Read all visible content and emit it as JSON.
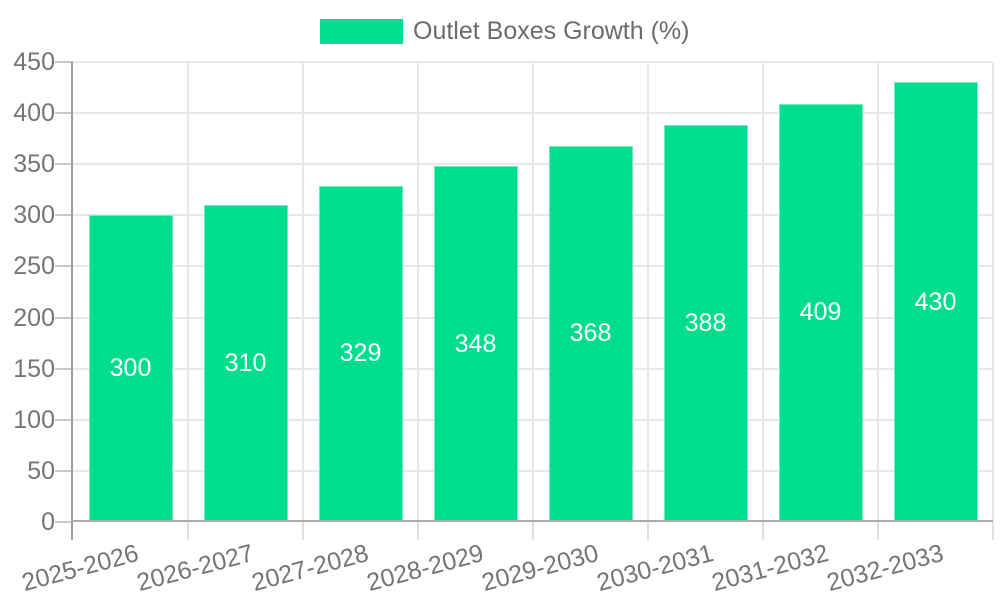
{
  "chart_data": {
    "type": "bar",
    "title": "Outlet Boxes Growth (%)",
    "categories": [
      "2025-2026",
      "2026-2027",
      "2027-2028",
      "2028-2029",
      "2029-2030",
      "2030-2031",
      "2031-2032",
      "2032-2033"
    ],
    "series": [
      {
        "name": "Outlet Boxes Growth (%)",
        "values": [
          300,
          310,
          329,
          348,
          368,
          388,
          409,
          430
        ]
      }
    ],
    "bar_value_labels": [
      "300",
      "310",
      "329",
      "348",
      "368",
      "388",
      "409",
      "430"
    ],
    "xlabel": "",
    "ylabel": "",
    "ylim": [
      0,
      450
    ],
    "yticks": [
      0,
      50,
      100,
      150,
      200,
      250,
      300,
      350,
      400,
      450
    ],
    "grid": true,
    "legend_position": "top-center",
    "x_tick_rotation_deg": -15
  },
  "colors": {
    "background": "#FFFFFF",
    "bar_fill": "#00DD8F",
    "bar_edge": "rgba(255,255,255,0.45)",
    "bar_value_text": "#FFFFFF",
    "axis_text": "#757575",
    "legend_text": "#6B6B6B",
    "gridline": "#E8E8E8",
    "y_axis_line": "#9E9E9E",
    "x_axis_line": "#ABABAB",
    "y_tick_mark": "#C9C9C9",
    "x_tick_mark": "#E0E0E0"
  }
}
